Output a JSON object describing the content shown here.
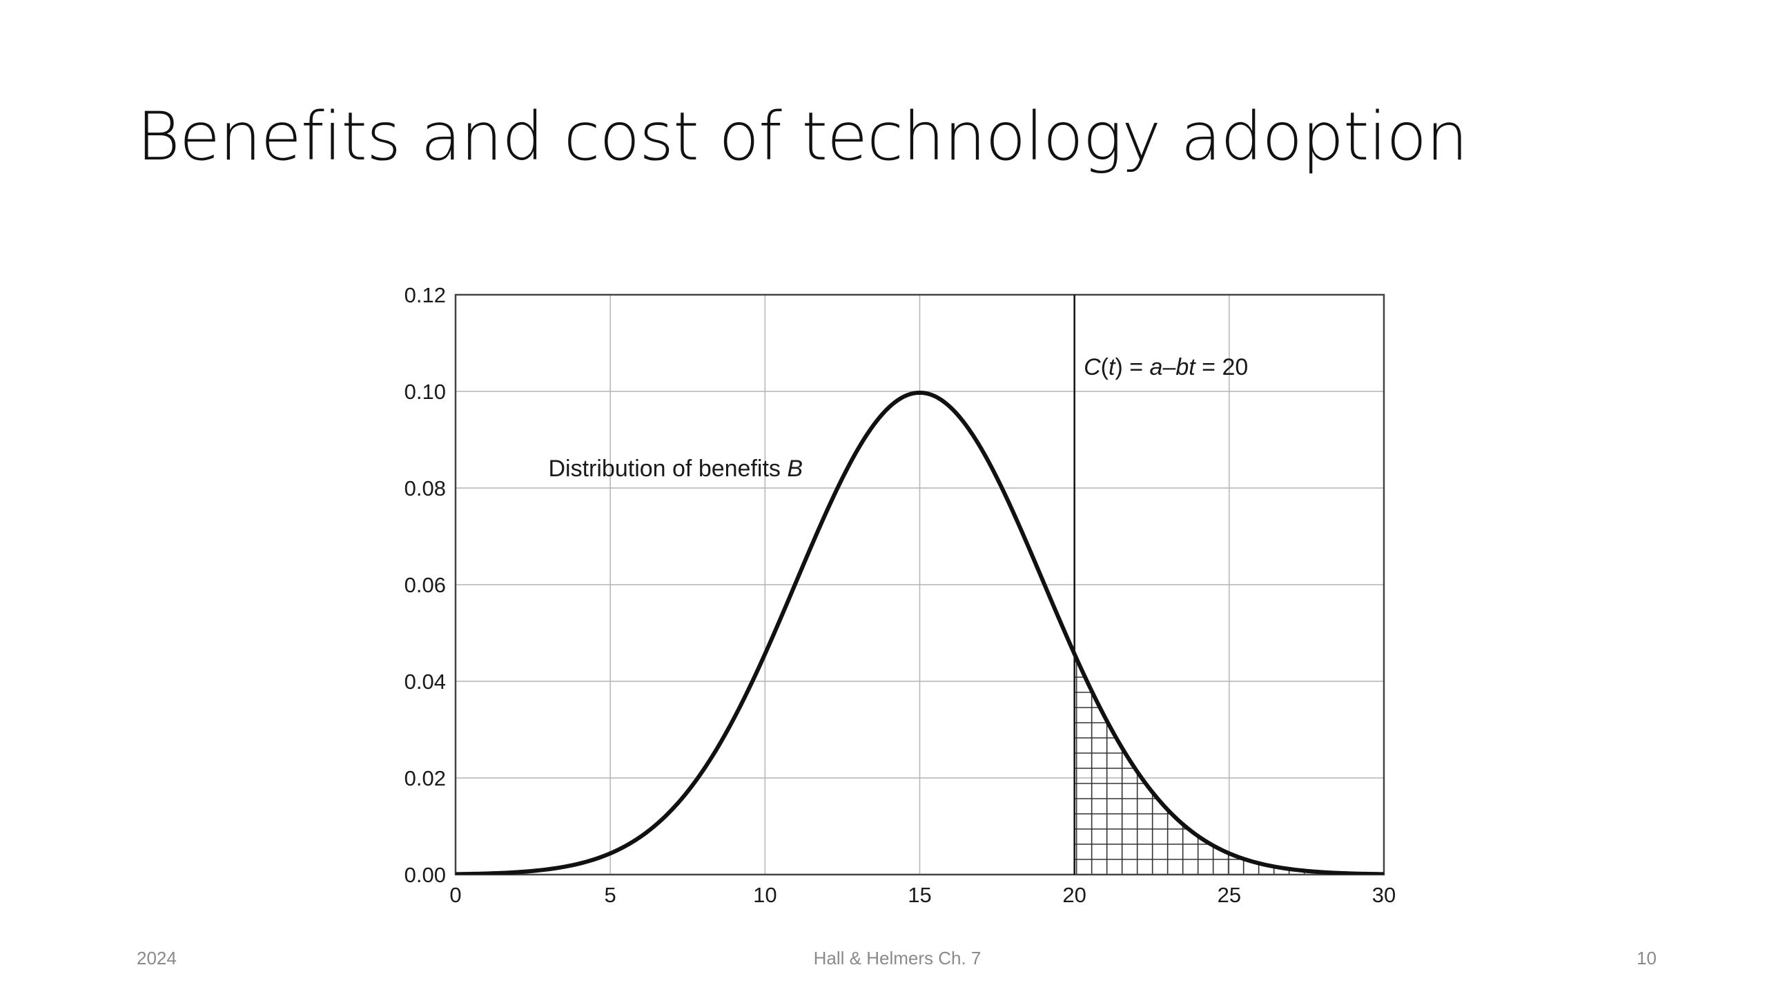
{
  "slide": {
    "title": "Benefits and cost of technology adoption",
    "footer_left": "2024",
    "footer_center": "Hall & Helmers Ch. 7",
    "footer_right": "10"
  },
  "chart_data": {
    "type": "line",
    "title": "",
    "xlabel": "",
    "ylabel": "",
    "xlim": [
      0,
      30
    ],
    "ylim": [
      0,
      0.12
    ],
    "x_ticks": [
      "0",
      "5",
      "10",
      "15",
      "20",
      "25",
      "30"
    ],
    "y_ticks": [
      "0.00",
      "0.02",
      "0.04",
      "0.06",
      "0.08",
      "0.10",
      "0.12"
    ],
    "grid": true,
    "series": [
      {
        "x": [
          0,
          2,
          4,
          6,
          8,
          10,
          12,
          14,
          15,
          16,
          18,
          20,
          22,
          24,
          26,
          28,
          30
        ],
        "y": [
          0.0,
          0.0002,
          0.0015,
          0.0067,
          0.0216,
          0.046,
          0.077,
          0.097,
          0.0995,
          0.097,
          0.077,
          0.046,
          0.0216,
          0.0067,
          0.0015,
          0.0002,
          0.0
        ]
      }
    ],
    "distribution": {
      "mean": 15,
      "sd": 4
    },
    "cost_line": {
      "x": 20
    },
    "shaded_region": {
      "from": 20,
      "to": 30,
      "pattern": "grid hatch"
    },
    "annotations": [
      {
        "text_main": "Distribution of benefits ",
        "text_italic": "B",
        "x": 3,
        "y": 0.084
      },
      {
        "text_parts": [
          "C",
          "(",
          "t",
          ") = ",
          "a",
          "–",
          "bt",
          " = 20"
        ],
        "italic_flags": [
          true,
          false,
          true,
          false,
          true,
          false,
          true,
          false
        ],
        "x": 20.3,
        "y": 0.105
      }
    ]
  }
}
